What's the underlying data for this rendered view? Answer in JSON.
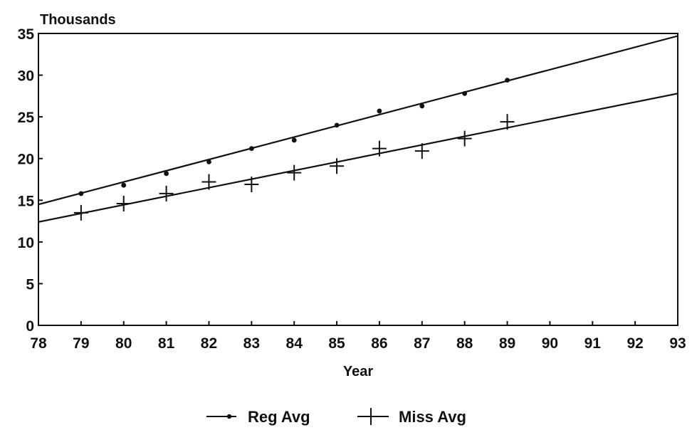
{
  "chart_data": {
    "type": "line",
    "title": "",
    "ylabel": "Thousands",
    "xlabel": "Year",
    "x_ticks": [
      "78",
      "79",
      "80",
      "81",
      "82",
      "83",
      "84",
      "85",
      "86",
      "87",
      "88",
      "89",
      "90",
      "91",
      "92",
      "93"
    ],
    "y_ticks": [
      "0",
      "5",
      "10",
      "15",
      "20",
      "25",
      "30",
      "35"
    ],
    "xlim": [
      78,
      93
    ],
    "ylim": [
      0,
      35
    ],
    "grid": false,
    "legend_position": "bottom-center",
    "series": [
      {
        "name": "Reg Avg",
        "marker": "dot",
        "x": [
          79,
          80,
          81,
          82,
          83,
          84,
          85,
          86,
          87,
          88,
          89
        ],
        "y": [
          15.8,
          16.8,
          18.2,
          19.6,
          21.2,
          22.2,
          24.0,
          25.7,
          26.3,
          27.8,
          29.4
        ],
        "trend": {
          "x": [
            78,
            93
          ],
          "y": [
            14.5,
            34.7
          ]
        }
      },
      {
        "name": "Miss Avg",
        "marker": "plus",
        "x": [
          79,
          80,
          81,
          82,
          83,
          84,
          85,
          86,
          87,
          88,
          89
        ],
        "y": [
          13.5,
          14.6,
          15.8,
          17.2,
          16.9,
          18.3,
          19.1,
          21.2,
          20.9,
          22.4,
          24.4
        ],
        "trend": {
          "x": [
            78,
            93
          ],
          "y": [
            12.4,
            27.8
          ]
        }
      }
    ]
  }
}
